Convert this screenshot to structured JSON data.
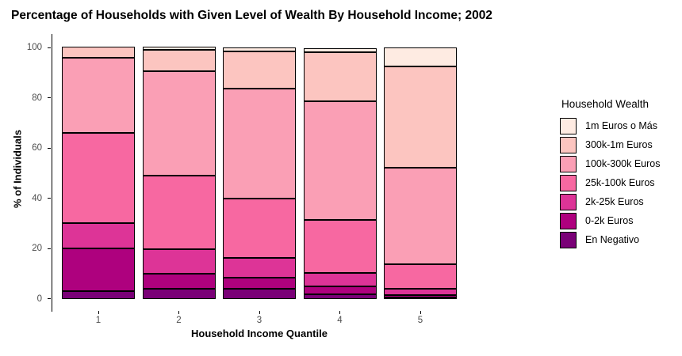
{
  "title": "Percentage of Households with Given Level of Wealth By Household Income; 2002",
  "chart_data": {
    "type": "bar",
    "stacked": true,
    "title": "Percentage of Households with Given Level of Wealth By Household Income; 2002",
    "xlabel": "Household Income Quantile",
    "ylabel": "% of Individuals",
    "categories": [
      "1",
      "2",
      "3",
      "4",
      "5"
    ],
    "yticks": [
      0,
      20,
      40,
      60,
      80,
      100
    ],
    "ylim": [
      0,
      100
    ],
    "grid": false,
    "legend_title": "Household Wealth",
    "legend_position": "right",
    "bar_border_color": "#000000",
    "series": [
      {
        "name": "1m Euros o Más",
        "color": "#FEEBE2",
        "values": [
          0.0,
          1.2,
          1.6,
          1.7,
          7.7
        ]
      },
      {
        "name": "300k-1m Euros",
        "color": "#FCC5C0",
        "values": [
          4.4,
          8.7,
          14.7,
          19.4,
          40.4
        ]
      },
      {
        "name": "100k-300k Euros",
        "color": "#FA9FB5",
        "values": [
          30.0,
          41.5,
          43.9,
          47.5,
          38.3
        ]
      },
      {
        "name": "25k-100k Euros",
        "color": "#F768A1",
        "values": [
          36.0,
          29.2,
          23.6,
          21.0,
          9.9
        ]
      },
      {
        "name": "2k-25k Euros",
        "color": "#DD3497",
        "values": [
          10.0,
          9.8,
          7.7,
          5.4,
          2.4
        ]
      },
      {
        "name": "0-2k Euros",
        "color": "#AE017E",
        "values": [
          17.0,
          6.0,
          4.5,
          3.0,
          0.8
        ]
      },
      {
        "name": "En Negativo",
        "color": "#7A0177",
        "values": [
          3.0,
          4.0,
          4.0,
          1.8,
          0.6
        ]
      }
    ]
  }
}
